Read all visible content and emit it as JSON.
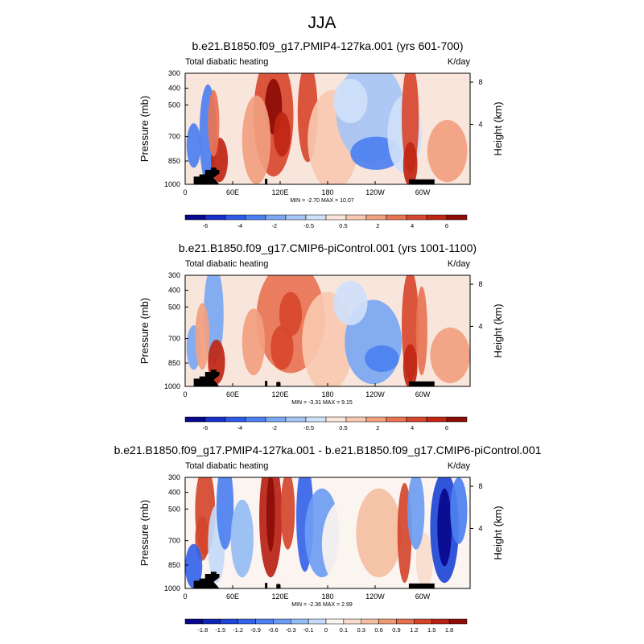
{
  "figure": {
    "title": "JJA"
  },
  "chart_data": [
    {
      "type": "heatmap",
      "title": "b.e21.B1850.f09_g17.PMIP4-127ka.001 (yrs 601-700)",
      "left_label": "Total diabatic heating",
      "right_label": "K/day",
      "ylabel": "Pressure (mb)",
      "ylabel_right": "Height (km)",
      "xticks": [
        "0",
        "60E",
        "120E",
        "180",
        "120W",
        "60W"
      ],
      "yticks": [
        "300",
        "400",
        "500",
        "700",
        "850",
        "1000"
      ],
      "yticks_right": [
        "8",
        "4"
      ],
      "stats": "MIN =  -2.70  MAX =  10.07",
      "colorbar": {
        "labels": [
          "-6",
          "-4",
          "-2",
          "-0.5",
          "0.5",
          "2",
          "4",
          "6"
        ],
        "colors": [
          "#08088c",
          "#1830c8",
          "#2e5ae6",
          "#4c80f0",
          "#7aa8f2",
          "#a6c6f5",
          "#cfe0f8",
          "#f8e6dc",
          "#f8c8b0",
          "#f2a080",
          "#e87454",
          "#d8482e",
          "#c02614",
          "#8c0c08"
        ]
      }
    },
    {
      "type": "heatmap",
      "title": "b.e21.B1850.f09_g17.CMIP6-piControl.001 (yrs 1001-1100)",
      "left_label": "Total diabatic heating",
      "right_label": "K/day",
      "ylabel": "Pressure (mb)",
      "ylabel_right": "Height (km)",
      "xticks": [
        "0",
        "60E",
        "120E",
        "180",
        "120W",
        "60W"
      ],
      "yticks": [
        "300",
        "400",
        "500",
        "700",
        "850",
        "1000"
      ],
      "yticks_right": [
        "8",
        "4"
      ],
      "stats": "MIN =  -3.31  MAX =  9.15",
      "colorbar": {
        "labels": [
          "-6",
          "-4",
          "-2",
          "-0.5",
          "0.5",
          "2",
          "4",
          "6"
        ],
        "colors": [
          "#08088c",
          "#1830c8",
          "#2e5ae6",
          "#4c80f0",
          "#7aa8f2",
          "#a6c6f5",
          "#cfe0f8",
          "#f8e6dc",
          "#f8c8b0",
          "#f2a080",
          "#e87454",
          "#d8482e",
          "#c02614",
          "#8c0c08"
        ]
      }
    },
    {
      "type": "heatmap",
      "title": "b.e21.B1850.f09_g17.PMIP4-127ka.001 - b.e21.B1850.f09_g17.CMIP6-piControl.001",
      "left_label": "Total diabatic heating",
      "right_label": "K/day",
      "ylabel": "Pressure (mb)",
      "ylabel_right": "Height (km)",
      "xticks": [
        "0",
        "60E",
        "120E",
        "180",
        "120W",
        "60W"
      ],
      "yticks": [
        "300",
        "400",
        "500",
        "700",
        "850",
        "1000"
      ],
      "yticks_right": [
        "8",
        "4"
      ],
      "stats": "MIN =  -2.36  MAX =  2.99",
      "colorbar": {
        "labels": [
          "-1.8",
          "-1.5",
          "-1.2",
          "-0.9",
          "-0.6",
          "-0.3",
          "-0.1",
          "0",
          "0.1",
          "0.3",
          "0.6",
          "0.9",
          "1.2",
          "1.5",
          "1.8"
        ],
        "colors": [
          "#08088c",
          "#1226b4",
          "#2046d6",
          "#3664e8",
          "#4c80f0",
          "#6c9cf2",
          "#96bcf4",
          "#c4daf8",
          "#fbf4f0",
          "#f8dccc",
          "#f4bea2",
          "#ee9a78",
          "#e47050",
          "#d4462c",
          "#b82214",
          "#8c0c08"
        ]
      }
    }
  ]
}
